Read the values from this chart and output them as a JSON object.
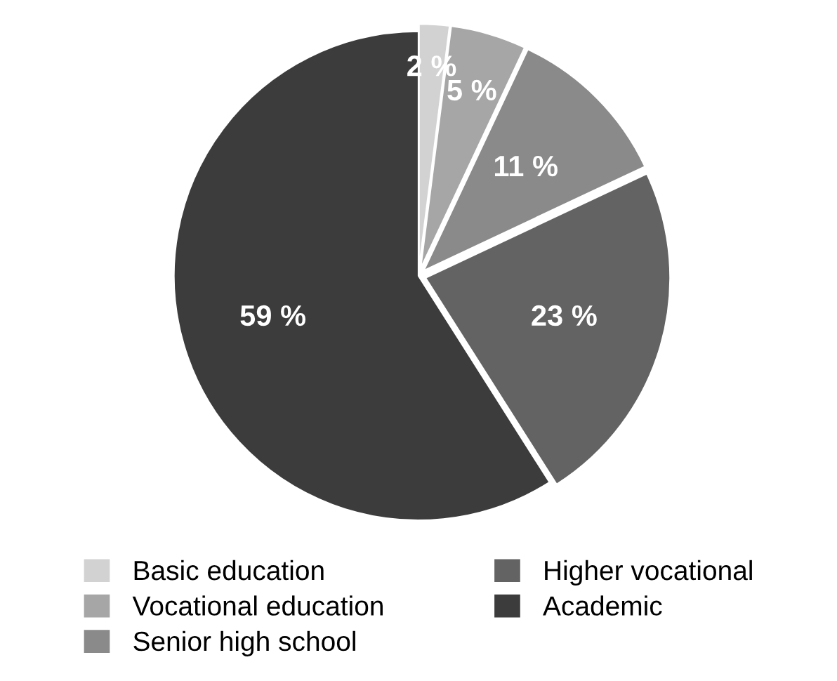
{
  "chart_data": {
    "type": "pie",
    "categories": [
      "Basic education",
      "Vocational education",
      "Senior high school",
      "Higher vocational",
      "Academic"
    ],
    "values": [
      2,
      5,
      11,
      23,
      59
    ],
    "colors": [
      "#d2d2d2",
      "#a6a6a6",
      "#8a8a8a",
      "#636363",
      "#3c3c3c"
    ],
    "value_labels": [
      "2 %",
      "5 %",
      "11 %",
      "23 %",
      "59 %"
    ],
    "legend": "bottom"
  }
}
